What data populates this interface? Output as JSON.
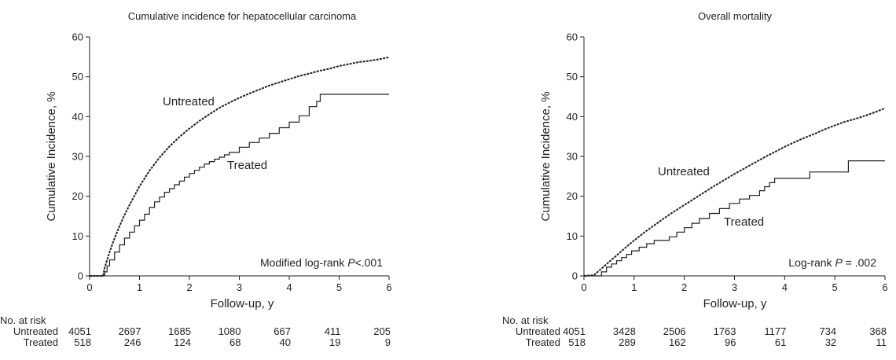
{
  "chart_data": [
    {
      "type": "line",
      "title": "Cumulative incidence for hepatocellular carcinoma",
      "xlabel": "Follow-up, y",
      "ylabel": "Cumulative Incidence, %",
      "xlim": [
        0,
        6
      ],
      "ylim": [
        0,
        60
      ],
      "xticks": [
        0,
        1,
        2,
        3,
        4,
        5,
        6
      ],
      "yticks": [
        0,
        10,
        20,
        30,
        40,
        50,
        60
      ],
      "grid": false,
      "legend": "inline labels",
      "annotation": {
        "text": "Modified log-rank ",
        "italic": "P",
        "value": "<.001"
      },
      "series": [
        {
          "name": "Untreated",
          "style": "dashed",
          "x": [
            0,
            0.27,
            0.3,
            0.4,
            0.5,
            0.6,
            0.7,
            0.8,
            1.0,
            1.2,
            1.4,
            1.6,
            1.8,
            2.0,
            2.2,
            2.4,
            2.6,
            2.8,
            3.0,
            3.2,
            3.4,
            3.6,
            3.8,
            4.0,
            4.2,
            4.4,
            4.6,
            4.8,
            5.0,
            5.2,
            5.4,
            5.6,
            5.8,
            6.0
          ],
          "y": [
            0,
            0,
            2,
            6,
            9.5,
            12.5,
            15.3,
            17.8,
            22.5,
            26.4,
            29.7,
            32.5,
            34.9,
            37.0,
            38.9,
            40.6,
            42.2,
            43.5,
            44.7,
            45.8,
            46.8,
            47.8,
            48.6,
            49.4,
            50.2,
            50.8,
            51.5,
            52.0,
            52.7,
            53.2,
            53.7,
            54.0,
            54.4,
            54.9
          ]
        },
        {
          "name": "Treated",
          "style": "solid",
          "step": true,
          "x": [
            0,
            0.28,
            0.3,
            0.35,
            0.4,
            0.5,
            0.6,
            0.7,
            0.8,
            0.9,
            1.0,
            1.1,
            1.2,
            1.3,
            1.4,
            1.5,
            1.6,
            1.7,
            1.8,
            1.9,
            2.0,
            2.1,
            2.2,
            2.3,
            2.4,
            2.5,
            2.6,
            2.7,
            2.8,
            3.0,
            3.2,
            3.4,
            3.6,
            3.8,
            4.0,
            4.2,
            4.4,
            4.55,
            4.62,
            5.0,
            6.0
          ],
          "y": [
            0,
            0,
            1,
            2.5,
            4,
            6,
            7.8,
            9.5,
            11,
            12.6,
            14,
            15.5,
            17.2,
            18.6,
            19.8,
            21,
            21.9,
            22.9,
            23.8,
            24.8,
            25.7,
            26.5,
            27.3,
            28.1,
            28.7,
            29.3,
            29.8,
            30.4,
            31,
            32.3,
            33.5,
            34.6,
            35.8,
            37.2,
            38.6,
            40.2,
            42.5,
            43.8,
            45.6,
            45.6,
            45.6
          ]
        }
      ],
      "curve_labels": [
        "Untreated",
        "Treated"
      ],
      "risk_table": {
        "header": "No. at risk",
        "rows": [
          {
            "label": "Untreated",
            "values": [
              "4051",
              "2697",
              "1685",
              "1080",
              "667",
              "411",
              "205"
            ]
          },
          {
            "label": "Treated",
            "values": [
              "518",
              "246",
              "124",
              "68",
              "40",
              "19",
              "9"
            ]
          }
        ]
      }
    },
    {
      "type": "line",
      "title": "Overall mortality",
      "xlabel": "Follow-up, y",
      "ylabel": "Cumulative Incidence, %",
      "xlim": [
        0,
        6
      ],
      "ylim": [
        0,
        60
      ],
      "xticks": [
        0,
        1,
        2,
        3,
        4,
        5,
        6
      ],
      "yticks": [
        0,
        10,
        20,
        30,
        40,
        50,
        60
      ],
      "grid": false,
      "legend": "inline labels",
      "annotation": {
        "text": "Log-rank ",
        "italic": "P",
        "value": " = .002"
      },
      "series": [
        {
          "name": "Untreated",
          "style": "dashed",
          "x": [
            0,
            0.2,
            0.4,
            0.6,
            0.8,
            1.0,
            1.2,
            1.4,
            1.6,
            1.8,
            2.0,
            2.2,
            2.4,
            2.6,
            2.8,
            3.0,
            3.2,
            3.4,
            3.6,
            3.8,
            4.0,
            4.2,
            4.4,
            4.6,
            4.8,
            5.0,
            5.2,
            5.4,
            5.6,
            5.8,
            6.0
          ],
          "y": [
            0,
            0.2,
            2.4,
            4.6,
            6.8,
            8.9,
            10.9,
            12.7,
            14.5,
            16.2,
            17.8,
            19.4,
            21.0,
            22.6,
            24.1,
            25.6,
            27.0,
            28.4,
            29.8,
            31.1,
            32.4,
            33.6,
            34.7,
            35.7,
            36.8,
            37.8,
            38.7,
            39.4,
            40.2,
            41.1,
            42.1
          ]
        },
        {
          "name": "Treated",
          "style": "solid",
          "step": true,
          "x": [
            0,
            0.25,
            0.35,
            0.45,
            0.55,
            0.65,
            0.75,
            0.85,
            0.95,
            1.1,
            1.25,
            1.4,
            1.7,
            1.85,
            2.0,
            2.15,
            2.3,
            2.5,
            2.7,
            2.9,
            3.1,
            3.3,
            3.5,
            3.6,
            3.7,
            3.8,
            4.5,
            5.27,
            6.0
          ],
          "y": [
            0,
            0,
            1,
            2.2,
            3,
            3.8,
            4.6,
            5.4,
            6.3,
            7.2,
            8.1,
            8.9,
            9.8,
            11,
            12.1,
            13.2,
            14.4,
            15.7,
            16.9,
            18.2,
            19.3,
            20.2,
            21.4,
            22.4,
            23.4,
            24.5,
            26.1,
            28.9,
            28.9
          ]
        }
      ],
      "curve_labels": [
        "Untreated",
        "Treated"
      ],
      "risk_table": {
        "header": "No. at risk",
        "rows": [
          {
            "label": "Untreated",
            "values": [
              "4051",
              "3428",
              "2506",
              "1763",
              "1177",
              "734",
              "368"
            ]
          },
          {
            "label": "Treated",
            "values": [
              "518",
              "289",
              "162",
              "96",
              "61",
              "32",
              "11"
            ]
          }
        ]
      }
    }
  ]
}
